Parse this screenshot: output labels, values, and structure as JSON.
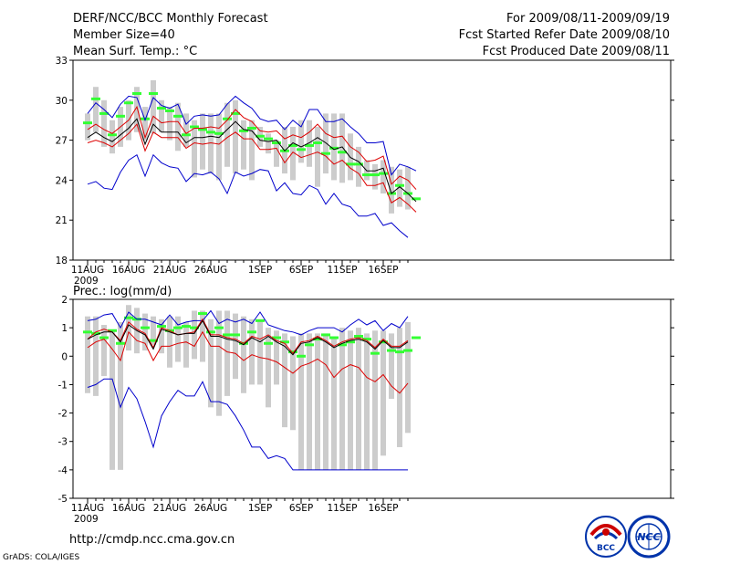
{
  "header": {
    "left": [
      "DERF/NCC/BCC Monthly Forecast",
      "Member Size=40",
      "Mean Surf. Temp.: °C"
    ],
    "right": [
      "For 2009/08/11-2009/09/19",
      "Fcst Started Refer Date 2009/08/10",
      "Fcst Produced Date 2009/08/11"
    ]
  },
  "footer": {
    "url": "http://cmdp.ncc.cma.gov.cn",
    "credit": "GrADS: COLA/IGES"
  },
  "logos": {
    "bcc": "BCC",
    "ncc": "NCC"
  },
  "colors": {
    "bar": "#cccccc",
    "green": "#33ff33",
    "blue": "#0000cc",
    "red": "#dd0000",
    "black": "#000000"
  },
  "chart_data": [
    {
      "type": "line",
      "title": "Mean Surf. Temp.: °C",
      "ylim": [
        18,
        33
      ],
      "yticks": [
        "18",
        "21",
        "24",
        "27",
        "30",
        "33"
      ],
      "xtick_labels": [
        "11AUG",
        "16AUG",
        "21AUG",
        "26AUG",
        "1SEP",
        "6SEP",
        "11SEP",
        "16SEP"
      ],
      "xtick_sublabel": "2009",
      "xtick_days": [
        0,
        5,
        10,
        15,
        21,
        26,
        31,
        36
      ],
      "days": 40,
      "bars": {
        "low": [
          27.0,
          27.6,
          26.5,
          26.0,
          26.5,
          27.0,
          27.6,
          27.0,
          27.5,
          27.6,
          27.0,
          26.2,
          26.5,
          24.2,
          24.8,
          24.5,
          24.0,
          25.0,
          24.5,
          24.8,
          24.0,
          26.5,
          26.0,
          25.0,
          24.5,
          24.0,
          25.3,
          25.0,
          23.5,
          24.5,
          24.0,
          23.8,
          24.0,
          23.5,
          24.0,
          23.3,
          23.0,
          21.5,
          22.0,
          21.8
        ],
        "high": [
          29.0,
          31.0,
          30.0,
          28.5,
          29.5,
          30.0,
          31.0,
          29.5,
          31.5,
          30.0,
          29.5,
          29.8,
          29.0,
          28.5,
          29.0,
          29.0,
          29.0,
          29.8,
          30.0,
          28.5,
          28.5,
          28.0,
          27.5,
          27.0,
          28.0,
          28.0,
          28.5,
          28.5,
          28.0,
          29.0,
          29.0,
          29.0,
          27.5,
          26.5,
          25.5,
          25.2,
          25.5,
          25.0,
          24.8,
          25.0
        ]
      },
      "series": [
        {
          "name": "observed-ref",
          "color": "green",
          "markers": true,
          "values": [
            28.3,
            30.1,
            29.0,
            27.4,
            28.8,
            29.8,
            30.5,
            28.6,
            30.5,
            29.4,
            29.2,
            28.8,
            27.4,
            28.0,
            27.8,
            27.6,
            27.5,
            28.6,
            29.0,
            27.7,
            27.9,
            27.3,
            27.1,
            26.8,
            26.2,
            26.6,
            26.3,
            26.6,
            26.8,
            26.0,
            26.4,
            26.1,
            25.2,
            25.2,
            24.4,
            24.4,
            24.5,
            23.0,
            23.6,
            23.0,
            22.6
          ]
        },
        {
          "name": "max",
          "color": "blue",
          "values": [
            29.0,
            29.8,
            29.3,
            28.7,
            29.7,
            30.3,
            30.2,
            28.5,
            30.2,
            29.6,
            29.4,
            29.7,
            28.2,
            28.8,
            28.9,
            28.8,
            28.9,
            29.7,
            30.3,
            29.8,
            29.4,
            28.6,
            28.4,
            28.5,
            27.8,
            28.5,
            28.0,
            29.3,
            29.3,
            28.4,
            28.4,
            28.6,
            28.0,
            27.5,
            26.8,
            26.8,
            26.9,
            24.4,
            25.2,
            25.0,
            24.7
          ]
        },
        {
          "name": "upper",
          "color": "red",
          "values": [
            27.8,
            28.2,
            27.8,
            27.5,
            28.0,
            28.5,
            29.5,
            27.2,
            28.8,
            28.3,
            28.4,
            28.4,
            27.5,
            27.9,
            27.9,
            28.0,
            27.9,
            28.5,
            29.3,
            28.7,
            28.4,
            27.7,
            27.6,
            27.7,
            27.1,
            27.4,
            27.2,
            27.6,
            28.2,
            27.5,
            27.2,
            27.3,
            26.5,
            26.1,
            25.4,
            25.5,
            25.8,
            23.7,
            24.3,
            24.0,
            23.3
          ]
        },
        {
          "name": "mean",
          "color": "black",
          "values": [
            27.2,
            27.6,
            27.2,
            26.9,
            27.4,
            27.9,
            28.6,
            26.7,
            28.2,
            27.6,
            27.6,
            27.6,
            26.8,
            27.2,
            27.2,
            27.3,
            27.2,
            27.8,
            28.4,
            27.8,
            27.7,
            27.0,
            26.9,
            27.0,
            26.2,
            26.8,
            26.5,
            26.8,
            27.2,
            26.8,
            26.3,
            26.5,
            25.7,
            25.4,
            24.7,
            24.7,
            24.9,
            23.0,
            23.5,
            23.0,
            22.4
          ]
        },
        {
          "name": "lower",
          "color": "red",
          "values": [
            26.8,
            27.0,
            26.8,
            26.5,
            27.0,
            27.5,
            28.2,
            26.2,
            27.6,
            27.2,
            27.2,
            27.2,
            26.4,
            26.8,
            26.7,
            26.8,
            26.7,
            27.2,
            27.6,
            27.1,
            27.1,
            26.3,
            26.3,
            26.4,
            25.3,
            26.1,
            25.7,
            25.9,
            26.1,
            25.8,
            25.2,
            25.5,
            24.9,
            24.5,
            23.6,
            23.6,
            23.8,
            22.3,
            22.7,
            22.2,
            21.6
          ]
        },
        {
          "name": "min",
          "color": "blue",
          "values": [
            23.7,
            23.9,
            23.4,
            23.3,
            24.6,
            25.5,
            25.9,
            24.3,
            25.9,
            25.3,
            25.0,
            24.9,
            23.9,
            24.5,
            24.4,
            24.6,
            24.1,
            23.0,
            24.6,
            24.3,
            24.5,
            24.8,
            24.7,
            23.2,
            23.8,
            23.0,
            22.9,
            23.6,
            23.3,
            22.2,
            23.0,
            22.2,
            22.0,
            21.3,
            21.3,
            21.5,
            20.6,
            20.8,
            20.2,
            19.7
          ]
        }
      ]
    },
    {
      "type": "line",
      "title": "Prec.: log(mm/d)",
      "ylim": [
        -5,
        2
      ],
      "yticks": [
        "-5",
        "-4",
        "-3",
        "-2",
        "-1",
        "0",
        "1",
        "2"
      ],
      "xtick_labels": [
        "11AUG",
        "16AUG",
        "21AUG",
        "26AUG",
        "1SEP",
        "6SEP",
        "11SEP",
        "16SEP"
      ],
      "xtick_sublabel": "2009",
      "xtick_days": [
        0,
        5,
        10,
        15,
        21,
        26,
        31,
        36
      ],
      "days": 40,
      "bars": {
        "low": [
          -1.3,
          -1.4,
          -0.7,
          -4.0,
          -4.0,
          0.2,
          0.1,
          0.2,
          0.4,
          0.1,
          -0.4,
          -0.2,
          -0.4,
          -0.1,
          -0.2,
          -1.8,
          -2.1,
          -1.4,
          -0.8,
          -1.3,
          -1.0,
          -1.0,
          -1.8,
          -1.0,
          -2.5,
          -2.6,
          -4.0,
          -4.0,
          -4.0,
          -4.0,
          -4.0,
          -4.0,
          -4.0,
          -4.0,
          -4.0,
          -4.0,
          -3.5,
          -1.5,
          -3.2,
          -2.7
        ],
        "high": [
          1.4,
          1.4,
          1.1,
          0.9,
          1.2,
          1.8,
          1.7,
          1.5,
          1.4,
          1.3,
          1.4,
          1.4,
          1.2,
          1.6,
          1.6,
          1.3,
          1.6,
          1.6,
          1.5,
          1.4,
          1.3,
          1.3,
          1.0,
          0.9,
          0.8,
          0.7,
          0.8,
          0.8,
          0.8,
          0.8,
          0.7,
          1.0,
          0.9,
          1.0,
          0.8,
          0.9,
          0.9,
          0.8,
          1.0,
          1.2
        ]
      },
      "series": [
        {
          "name": "observed-ref",
          "color": "green",
          "markers": true,
          "values": [
            0.85,
            0.8,
            0.65,
            0.9,
            0.45,
            1.35,
            1.3,
            1.0,
            0.55,
            1.05,
            0.9,
            1.0,
            1.05,
            1.0,
            1.5,
            0.85,
            1.0,
            0.75,
            0.75,
            0.45,
            0.85,
            1.25,
            0.45,
            0.65,
            0.5,
            0.15,
            0.0,
            0.4,
            0.6,
            0.75,
            0.65,
            0.4,
            0.5,
            0.7,
            0.6,
            0.1,
            0.5,
            0.2,
            0.15,
            0.2,
            0.65
          ]
        },
        {
          "name": "max",
          "color": "blue",
          "values": [
            1.25,
            1.3,
            1.45,
            1.5,
            1.0,
            1.55,
            1.3,
            1.3,
            1.2,
            1.1,
            1.45,
            1.1,
            1.2,
            1.25,
            1.25,
            1.6,
            1.15,
            1.3,
            1.2,
            1.3,
            1.15,
            1.55,
            1.1,
            1.0,
            0.9,
            0.85,
            0.75,
            0.9,
            1.0,
            1.0,
            1.0,
            0.85,
            1.1,
            1.3,
            1.1,
            1.25,
            0.9,
            1.15,
            1.0,
            1.4
          ]
        },
        {
          "name": "upper",
          "color": "red",
          "values": [
            0.6,
            0.85,
            0.95,
            0.85,
            0.55,
            1.2,
            0.95,
            0.8,
            0.3,
            1.0,
            0.9,
            0.75,
            0.8,
            0.85,
            1.3,
            0.75,
            0.75,
            0.65,
            0.6,
            0.45,
            0.7,
            0.6,
            0.75,
            0.55,
            0.45,
            0.1,
            0.5,
            0.55,
            0.7,
            0.55,
            0.35,
            0.5,
            0.6,
            0.65,
            0.55,
            0.3,
            0.6,
            0.35,
            0.35,
            0.55
          ]
        },
        {
          "name": "mean",
          "color": "black",
          "values": [
            0.6,
            0.75,
            0.85,
            0.85,
            0.5,
            1.1,
            0.9,
            0.75,
            0.25,
            0.95,
            0.85,
            0.75,
            0.8,
            0.8,
            1.25,
            0.7,
            0.7,
            0.6,
            0.55,
            0.4,
            0.65,
            0.5,
            0.7,
            0.5,
            0.35,
            0.05,
            0.45,
            0.5,
            0.65,
            0.5,
            0.3,
            0.45,
            0.55,
            0.6,
            0.5,
            0.25,
            0.55,
            0.3,
            0.3,
            0.5
          ]
        },
        {
          "name": "lower",
          "color": "red",
          "values": [
            0.3,
            0.5,
            0.6,
            0.25,
            -0.15,
            0.85,
            0.55,
            0.45,
            -0.15,
            0.35,
            0.35,
            0.45,
            0.5,
            0.35,
            0.85,
            0.35,
            0.35,
            0.15,
            0.1,
            -0.15,
            0.05,
            -0.05,
            -0.1,
            -0.2,
            -0.4,
            -0.6,
            -0.35,
            -0.25,
            -0.1,
            -0.3,
            -0.75,
            -0.45,
            -0.3,
            -0.4,
            -0.75,
            -0.9,
            -0.65,
            -1.05,
            -1.3,
            -0.95
          ]
        },
        {
          "name": "min",
          "color": "blue",
          "values": [
            -1.1,
            -1.0,
            -0.8,
            -0.8,
            -1.8,
            -1.1,
            -1.5,
            -2.3,
            -3.2,
            -2.1,
            -1.6,
            -1.2,
            -1.4,
            -1.4,
            -0.9,
            -1.6,
            -1.6,
            -1.7,
            -2.1,
            -2.6,
            -3.2,
            -3.2,
            -3.6,
            -3.5,
            -3.6,
            -4.0,
            -4.0,
            -4.0,
            -4.0,
            -4.0,
            -4.0,
            -4.0,
            -4.0,
            -4.0,
            -4.0,
            -4.0,
            -4.0,
            -4.0,
            -4.0,
            -4.0
          ]
        }
      ]
    }
  ]
}
